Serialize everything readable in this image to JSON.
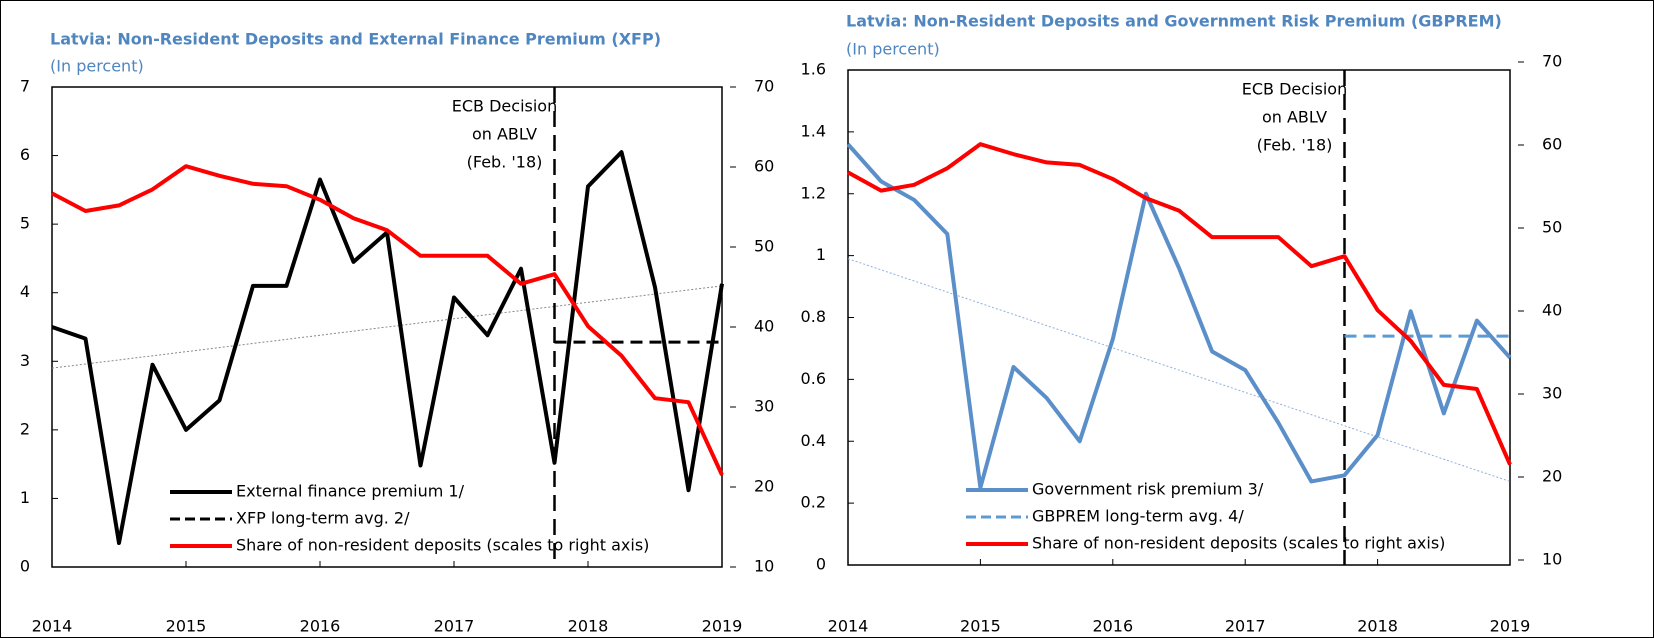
{
  "chart_data": [
    {
      "type": "line",
      "title": "Latvia: Non-Resident  Deposits and External Finance Premium (XFP)",
      "subtitle": "(In percent)",
      "x": [
        2014,
        2014.25,
        2014.5,
        2014.75,
        2015,
        2015.25,
        2015.5,
        2015.75,
        2016,
        2016.25,
        2016.5,
        2016.75,
        2017,
        2017.25,
        2017.5,
        2017.75,
        2018,
        2018.25,
        2018.5,
        2018.75,
        2019
      ],
      "xlim": [
        2014,
        2019
      ],
      "xticks": [
        2014,
        2015,
        2016,
        2017,
        2018,
        2019
      ],
      "ylim": [
        0,
        7
      ],
      "yticks": [
        0,
        1,
        2,
        3,
        4,
        5,
        6,
        7
      ],
      "y2lim": [
        10,
        70
      ],
      "y2ticks": [
        10,
        20,
        30,
        40,
        50,
        60,
        70
      ],
      "legend": "lower left",
      "series": [
        {
          "name": "External finance premium 1/",
          "color": "#000000",
          "style": "solid",
          "values": [
            3.5,
            3.33,
            0.35,
            2.95,
            2.0,
            2.43,
            4.1,
            4.1,
            5.65,
            4.45,
            4.88,
            1.48,
            3.93,
            3.38,
            4.35,
            1.52,
            5.55,
            6.05,
            4.08,
            1.12,
            4.13
          ]
        },
        {
          "name": "XFP long-term avg. 2/",
          "color": "#000000",
          "style": "dashed",
          "values": [
            null,
            null,
            null,
            null,
            null,
            null,
            null,
            null,
            null,
            null,
            null,
            null,
            null,
            null,
            null,
            3.28,
            3.28,
            3.28,
            3.28,
            3.28,
            3.28
          ]
        },
        {
          "name": "Share of non-resident deposits (scales to right axis)",
          "color": "#ff0000",
          "style": "solid",
          "axis": "y2",
          "values": [
            56.7,
            54.5,
            55.2,
            57.2,
            60.1,
            58.9,
            57.9,
            57.6,
            55.9,
            53.6,
            52.1,
            48.9,
            48.9,
            48.9,
            45.4,
            46.6,
            40.1,
            36.4,
            31.1,
            30.6,
            21.5
          ]
        }
      ],
      "trend": {
        "x": [
          2014,
          2019
        ],
        "values": [
          2.9,
          4.1
        ],
        "color": "#888888"
      },
      "annotation": {
        "x": 2017.75,
        "text": [
          "ECB Decision",
          "on ABLV",
          "(Feb. '18)"
        ]
      }
    },
    {
      "type": "line",
      "title": "Latvia: Non-Resident  Deposits and Government Risk Premium (GBPREM)",
      "subtitle": "(In percent)",
      "x": [
        2014,
        2014.25,
        2014.5,
        2014.75,
        2015,
        2015.25,
        2015.5,
        2015.75,
        2016,
        2016.25,
        2016.5,
        2016.75,
        2017,
        2017.25,
        2017.5,
        2017.75,
        2018,
        2018.25,
        2018.5,
        2018.75,
        2019
      ],
      "xlim": [
        2014,
        2019
      ],
      "xticks": [
        2014,
        2015,
        2016,
        2017,
        2018,
        2019
      ],
      "ylim": [
        0,
        1.6
      ],
      "yticks": [
        0,
        0.2,
        0.4,
        0.6,
        0.8,
        1,
        1.2,
        1.4,
        1.6
      ],
      "y2lim": [
        10,
        70
      ],
      "y2ticks": [
        10,
        20,
        30,
        40,
        50,
        60,
        70
      ],
      "legend": "lower left",
      "series": [
        {
          "name": "Government risk premium 3/",
          "color": "#5b8fc9",
          "style": "solid",
          "values": [
            1.36,
            1.24,
            1.18,
            1.07,
            0.25,
            0.64,
            0.54,
            0.4,
            0.73,
            1.2,
            0.96,
            0.69,
            0.63,
            0.46,
            0.27,
            0.29,
            0.42,
            0.82,
            0.49,
            0.79,
            0.67
          ]
        },
        {
          "name": "GBPREM long-term avg. 4/",
          "color": "#5b9bd5",
          "style": "dashed",
          "values": [
            null,
            null,
            null,
            null,
            null,
            null,
            null,
            null,
            null,
            null,
            null,
            null,
            null,
            null,
            null,
            0.74,
            0.74,
            0.74,
            0.74,
            0.74,
            0.74
          ]
        },
        {
          "name": "Share of non-resident deposits (scales to right axis)",
          "color": "#ff0000",
          "style": "solid",
          "axis": "y2",
          "values": [
            56.7,
            54.5,
            55.2,
            57.2,
            60.1,
            58.9,
            57.9,
            57.6,
            55.9,
            53.6,
            52.1,
            48.9,
            48.9,
            48.9,
            45.4,
            46.6,
            40.1,
            36.4,
            31.1,
            30.6,
            21.5
          ]
        }
      ],
      "trend": {
        "x": [
          2014,
          2019
        ],
        "values": [
          0.99,
          0.27
        ],
        "color": "#8fb0dc"
      },
      "annotation": {
        "x": 2017.75,
        "text": [
          "ECB Decision",
          "on ABLV",
          "(Feb. '18)"
        ]
      }
    }
  ]
}
